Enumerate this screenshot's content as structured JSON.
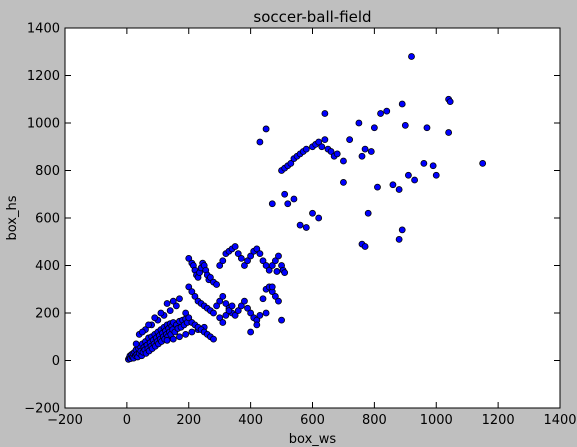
{
  "chart_data": {
    "type": "scatter",
    "title": "soccer-ball-field",
    "xlabel": "box_ws",
    "ylabel": "box_hs",
    "xlim": [
      -200,
      1400
    ],
    "ylim": [
      -200,
      1400
    ],
    "xticks": [
      -200,
      0,
      200,
      400,
      600,
      800,
      1000,
      1200,
      1400
    ],
    "yticks": [
      -200,
      0,
      200,
      400,
      600,
      800,
      1000,
      1200,
      1400
    ],
    "grid": false,
    "colors": {
      "figure_bg": "#bfbfbf",
      "axes_bg": "#ffffff",
      "marker_fill": "#0000ff",
      "marker_edge": "#000000"
    },
    "series": [
      {
        "values": [
          [
            5,
            5
          ],
          [
            8,
            12
          ],
          [
            10,
            20
          ],
          [
            12,
            8
          ],
          [
            15,
            25
          ],
          [
            18,
            15
          ],
          [
            20,
            30
          ],
          [
            22,
            10
          ],
          [
            25,
            35
          ],
          [
            28,
            20
          ],
          [
            30,
            45
          ],
          [
            32,
            25
          ],
          [
            35,
            15
          ],
          [
            38,
            50
          ],
          [
            40,
            30
          ],
          [
            42,
            60
          ],
          [
            45,
            40
          ],
          [
            48,
            20
          ],
          [
            50,
            70
          ],
          [
            52,
            35
          ],
          [
            55,
            55
          ],
          [
            58,
            45
          ],
          [
            60,
            80
          ],
          [
            62,
            30
          ],
          [
            65,
            65
          ],
          [
            68,
            50
          ],
          [
            70,
            95
          ],
          [
            72,
            40
          ],
          [
            75,
            75
          ],
          [
            78,
            60
          ],
          [
            80,
            100
          ],
          [
            82,
            50
          ],
          [
            85,
            85
          ],
          [
            88,
            70
          ],
          [
            90,
            110
          ],
          [
            92,
            60
          ],
          [
            95,
            95
          ],
          [
            98,
            80
          ],
          [
            100,
            120
          ],
          [
            102,
            70
          ],
          [
            105,
            105
          ],
          [
            108,
            90
          ],
          [
            110,
            130
          ],
          [
            112,
            80
          ],
          [
            115,
            115
          ],
          [
            118,
            100
          ],
          [
            120,
            140
          ],
          [
            122,
            90
          ],
          [
            125,
            125
          ],
          [
            128,
            110
          ],
          [
            130,
            150
          ],
          [
            132,
            100
          ],
          [
            135,
            135
          ],
          [
            138,
            120
          ],
          [
            140,
            155
          ],
          [
            142,
            110
          ],
          [
            145,
            145
          ],
          [
            148,
            130
          ],
          [
            150,
            160
          ],
          [
            155,
            120
          ],
          [
            160,
            150
          ],
          [
            165,
            135
          ],
          [
            170,
            165
          ],
          [
            175,
            140
          ],
          [
            180,
            170
          ],
          [
            185,
            150
          ],
          [
            190,
            175
          ],
          [
            195,
            160
          ],
          [
            40,
            110
          ],
          [
            60,
            130
          ],
          [
            80,
            150
          ],
          [
            100,
            170
          ],
          [
            120,
            190
          ],
          [
            140,
            210
          ],
          [
            160,
            230
          ],
          [
            150,
            250
          ],
          [
            170,
            260
          ],
          [
            130,
            240
          ],
          [
            110,
            200
          ],
          [
            90,
            180
          ],
          [
            70,
            150
          ],
          [
            50,
            120
          ],
          [
            30,
            70
          ],
          [
            130,
            85
          ],
          [
            150,
            90
          ],
          [
            170,
            100
          ],
          [
            190,
            110
          ],
          [
            210,
            120
          ],
          [
            230,
            130
          ],
          [
            250,
            140
          ],
          [
            200,
            430
          ],
          [
            210,
            410
          ],
          [
            215,
            400
          ],
          [
            220,
            380
          ],
          [
            225,
            360
          ],
          [
            230,
            350
          ],
          [
            235,
            370
          ],
          [
            240,
            390
          ],
          [
            245,
            410
          ],
          [
            250,
            400
          ],
          [
            255,
            380
          ],
          [
            260,
            360
          ],
          [
            265,
            340
          ],
          [
            270,
            350
          ],
          [
            280,
            330
          ],
          [
            290,
            320
          ],
          [
            300,
            400
          ],
          [
            310,
            420
          ],
          [
            320,
            450
          ],
          [
            330,
            460
          ],
          [
            340,
            470
          ],
          [
            350,
            480
          ],
          [
            360,
            450
          ],
          [
            370,
            430
          ],
          [
            380,
            400
          ],
          [
            390,
            420
          ],
          [
            400,
            440
          ],
          [
            410,
            460
          ],
          [
            420,
            470
          ],
          [
            430,
            450
          ],
          [
            440,
            420
          ],
          [
            450,
            400
          ],
          [
            460,
            380
          ],
          [
            470,
            400
          ],
          [
            480,
            420
          ],
          [
            490,
            440
          ],
          [
            500,
            400
          ],
          [
            505,
            380
          ],
          [
            510,
            370
          ],
          [
            485,
            375
          ],
          [
            200,
            310
          ],
          [
            210,
            290
          ],
          [
            220,
            270
          ],
          [
            230,
            250
          ],
          [
            240,
            240
          ],
          [
            250,
            230
          ],
          [
            260,
            220
          ],
          [
            270,
            210
          ],
          [
            280,
            200
          ],
          [
            290,
            230
          ],
          [
            300,
            250
          ],
          [
            310,
            270
          ],
          [
            320,
            240
          ],
          [
            330,
            220
          ],
          [
            340,
            200
          ],
          [
            350,
            190
          ],
          [
            360,
            210
          ],
          [
            370,
            230
          ],
          [
            380,
            250
          ],
          [
            390,
            220
          ],
          [
            400,
            200
          ],
          [
            410,
            180
          ],
          [
            420,
            170
          ],
          [
            430,
            190
          ],
          [
            440,
            260
          ],
          [
            450,
            300
          ],
          [
            460,
            310
          ],
          [
            470,
            290
          ],
          [
            480,
            270
          ],
          [
            490,
            250
          ],
          [
            190,
            200
          ],
          [
            200,
            180
          ],
          [
            210,
            160
          ],
          [
            220,
            150
          ],
          [
            230,
            140
          ],
          [
            240,
            130
          ],
          [
            250,
            120
          ],
          [
            260,
            110
          ],
          [
            270,
            100
          ],
          [
            280,
            90
          ],
          [
            300,
            180
          ],
          [
            310,
            160
          ],
          [
            320,
            190
          ],
          [
            330,
            210
          ],
          [
            340,
            230
          ],
          [
            400,
            120
          ],
          [
            420,
            150
          ],
          [
            450,
            200
          ],
          [
            470,
            310
          ],
          [
            500,
            170
          ],
          [
            430,
            920
          ],
          [
            450,
            975
          ],
          [
            470,
            660
          ],
          [
            500,
            800
          ],
          [
            510,
            810
          ],
          [
            520,
            820
          ],
          [
            530,
            830
          ],
          [
            540,
            850
          ],
          [
            550,
            860
          ],
          [
            560,
            870
          ],
          [
            570,
            880
          ],
          [
            580,
            890
          ],
          [
            600,
            900
          ],
          [
            610,
            910
          ],
          [
            620,
            920
          ],
          [
            630,
            900
          ],
          [
            640,
            930
          ],
          [
            650,
            890
          ],
          [
            660,
            880
          ],
          [
            670,
            860
          ],
          [
            510,
            700
          ],
          [
            520,
            660
          ],
          [
            540,
            680
          ],
          [
            560,
            570
          ],
          [
            580,
            560
          ],
          [
            600,
            620
          ],
          [
            620,
            600
          ],
          [
            640,
            1040
          ],
          [
            700,
            750
          ],
          [
            720,
            930
          ],
          [
            750,
            1000
          ],
          [
            770,
            890
          ],
          [
            790,
            880
          ],
          [
            800,
            980
          ],
          [
            820,
            1040
          ],
          [
            840,
            1050
          ],
          [
            860,
            740
          ],
          [
            880,
            720
          ],
          [
            890,
            1080
          ],
          [
            900,
            990
          ],
          [
            910,
            780
          ],
          [
            920,
            1280
          ],
          [
            930,
            760
          ],
          [
            960,
            830
          ],
          [
            970,
            980
          ],
          [
            990,
            820
          ],
          [
            1000,
            780
          ],
          [
            1040,
            1100
          ],
          [
            1045,
            1090
          ],
          [
            1040,
            960
          ],
          [
            760,
            490
          ],
          [
            770,
            480
          ],
          [
            780,
            620
          ],
          [
            880,
            510
          ],
          [
            890,
            550
          ],
          [
            810,
            730
          ],
          [
            760,
            860
          ],
          [
            1150,
            830
          ],
          [
            680,
            870
          ],
          [
            700,
            840
          ]
        ]
      }
    ]
  }
}
